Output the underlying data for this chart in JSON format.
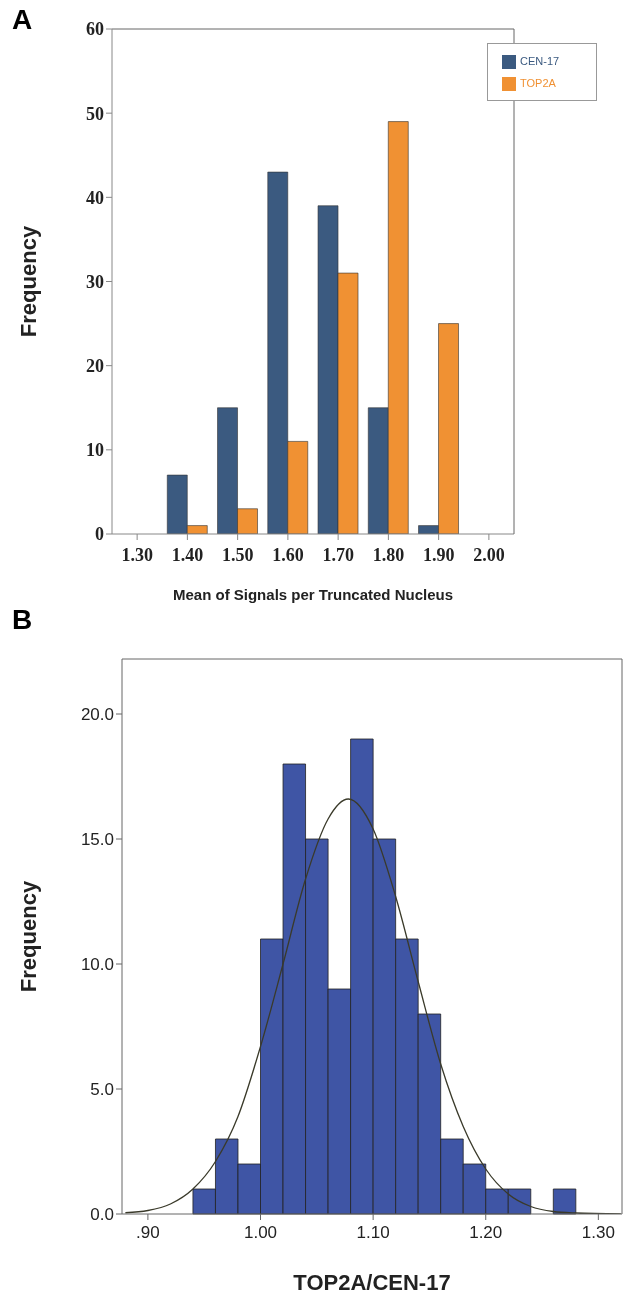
{
  "chart_data": [
    {
      "type": "bar",
      "annotations": [
        "A"
      ],
      "xlabel": "Mean  of Signals per Truncated Nucleus",
      "ylabel": "Frequency",
      "categories": [
        "1.30",
        "1.40",
        "1.50",
        "1.60",
        "1.70",
        "1.80",
        "1.90",
        "2.00"
      ],
      "series": [
        {
          "name": "CEN-17",
          "color": "#3b5a80",
          "values": [
            null,
            7,
            15,
            43,
            39,
            15,
            1,
            null
          ]
        },
        {
          "name": "TOP2A",
          "color": "#f09133",
          "values": [
            null,
            1,
            3,
            11,
            31,
            49,
            25,
            null
          ]
        }
      ],
      "ylim": [
        0,
        60
      ],
      "yticks": [
        0,
        10,
        20,
        30,
        40,
        50,
        60
      ],
      "legend": "top right",
      "grid": false
    },
    {
      "type": "histogram",
      "annotations": [
        "B"
      ],
      "xlabel": "TOP2A/CEN-17",
      "ylabel": "Frequency",
      "bins": [
        0.94,
        0.96,
        0.98,
        1.0,
        1.02,
        1.04,
        1.06,
        1.08,
        1.1,
        1.12,
        1.14,
        1.16,
        1.18,
        1.2,
        1.22,
        1.24,
        1.26,
        1.28
      ],
      "values": [
        1,
        3,
        2,
        11,
        18,
        15,
        9,
        19,
        15,
        11,
        8,
        3,
        2,
        1,
        1,
        0,
        1
      ],
      "color": "#3f55a5",
      "series": [
        {
          "type": "line",
          "color": "#3a3a2a",
          "x": [
            0.88,
            0.9,
            0.92,
            0.94,
            0.96,
            0.98,
            1.0,
            1.02,
            1.04,
            1.06,
            1.078,
            1.1,
            1.12,
            1.14,
            1.16,
            1.18,
            1.2,
            1.22,
            1.24,
            1.26,
            1.28,
            1.32
          ],
          "values": [
            0.05,
            0.14,
            0.4,
            1.0,
            2.1,
            3.9,
            6.7,
            10.0,
            13.4,
            15.8,
            16.6,
            15.4,
            12.7,
            9.3,
            6.0,
            3.5,
            1.8,
            0.8,
            0.3,
            0.1,
            0.04,
            0
          ]
        }
      ],
      "xlim": [
        0.877,
        1.321
      ],
      "xticks": [
        {
          "value": 0.9,
          "label": ".90"
        },
        {
          "value": 1.0,
          "label": "1.00"
        },
        {
          "value": 1.1,
          "label": "1.10"
        },
        {
          "value": 1.2,
          "label": "1.20"
        },
        {
          "value": 1.3,
          "label": "1.30"
        }
      ],
      "ylim": [
        0,
        22.2
      ],
      "yticks": [
        {
          "value": 0,
          "label": "0.0"
        },
        {
          "value": 5,
          "label": "5.0"
        },
        {
          "value": 10,
          "label": "10.0"
        },
        {
          "value": 15,
          "label": "15.0"
        },
        {
          "value": 20,
          "label": "20.0"
        }
      ],
      "grid": false
    }
  ]
}
